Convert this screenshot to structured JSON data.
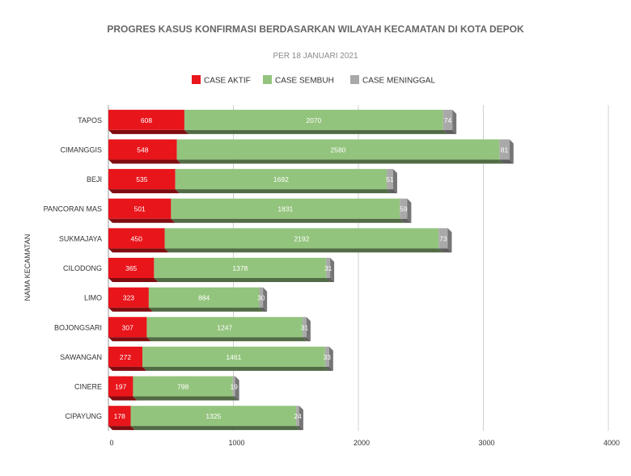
{
  "chart_data": {
    "type": "bar",
    "orientation": "horizontal",
    "stacked": true,
    "title": "PROGRES KASUS KONFIRMASI BERDASARKAN WILAYAH KECAMATAN DI KOTA DEPOK",
    "subtitle": "PER 18 JANUARI 2021",
    "ylabel": "NAMA KECAMATAN",
    "xlabel": "",
    "xlim": [
      0,
      4000
    ],
    "xticks": [
      0,
      1000,
      2000,
      3000,
      4000
    ],
    "grid": true,
    "legend_position": "top",
    "categories": [
      "TAPOS",
      "CIMANGGIS",
      "BEJI",
      "PANCORAN MAS",
      "SUKMAJAYA",
      "CILODONG",
      "LIMO",
      "BOJONGSARI",
      "SAWANGAN",
      "CINERE",
      "CIPAYUNG"
    ],
    "series": [
      {
        "name": "CASE AKTIF",
        "color": "#e8151b",
        "values": [
          608,
          548,
          535,
          501,
          450,
          365,
          323,
          307,
          272,
          197,
          178
        ]
      },
      {
        "name": "CASE SEMBUH",
        "color": "#93c47d",
        "values": [
          2070,
          2580,
          1692,
          1831,
          2192,
          1378,
          884,
          1247,
          1461,
          798,
          1325
        ]
      },
      {
        "name": "CASE MENINGGAL",
        "color": "#a9a9a9",
        "values": [
          74,
          81,
          51,
          59,
          73,
          31,
          30,
          31,
          33,
          19,
          24
        ]
      }
    ]
  }
}
